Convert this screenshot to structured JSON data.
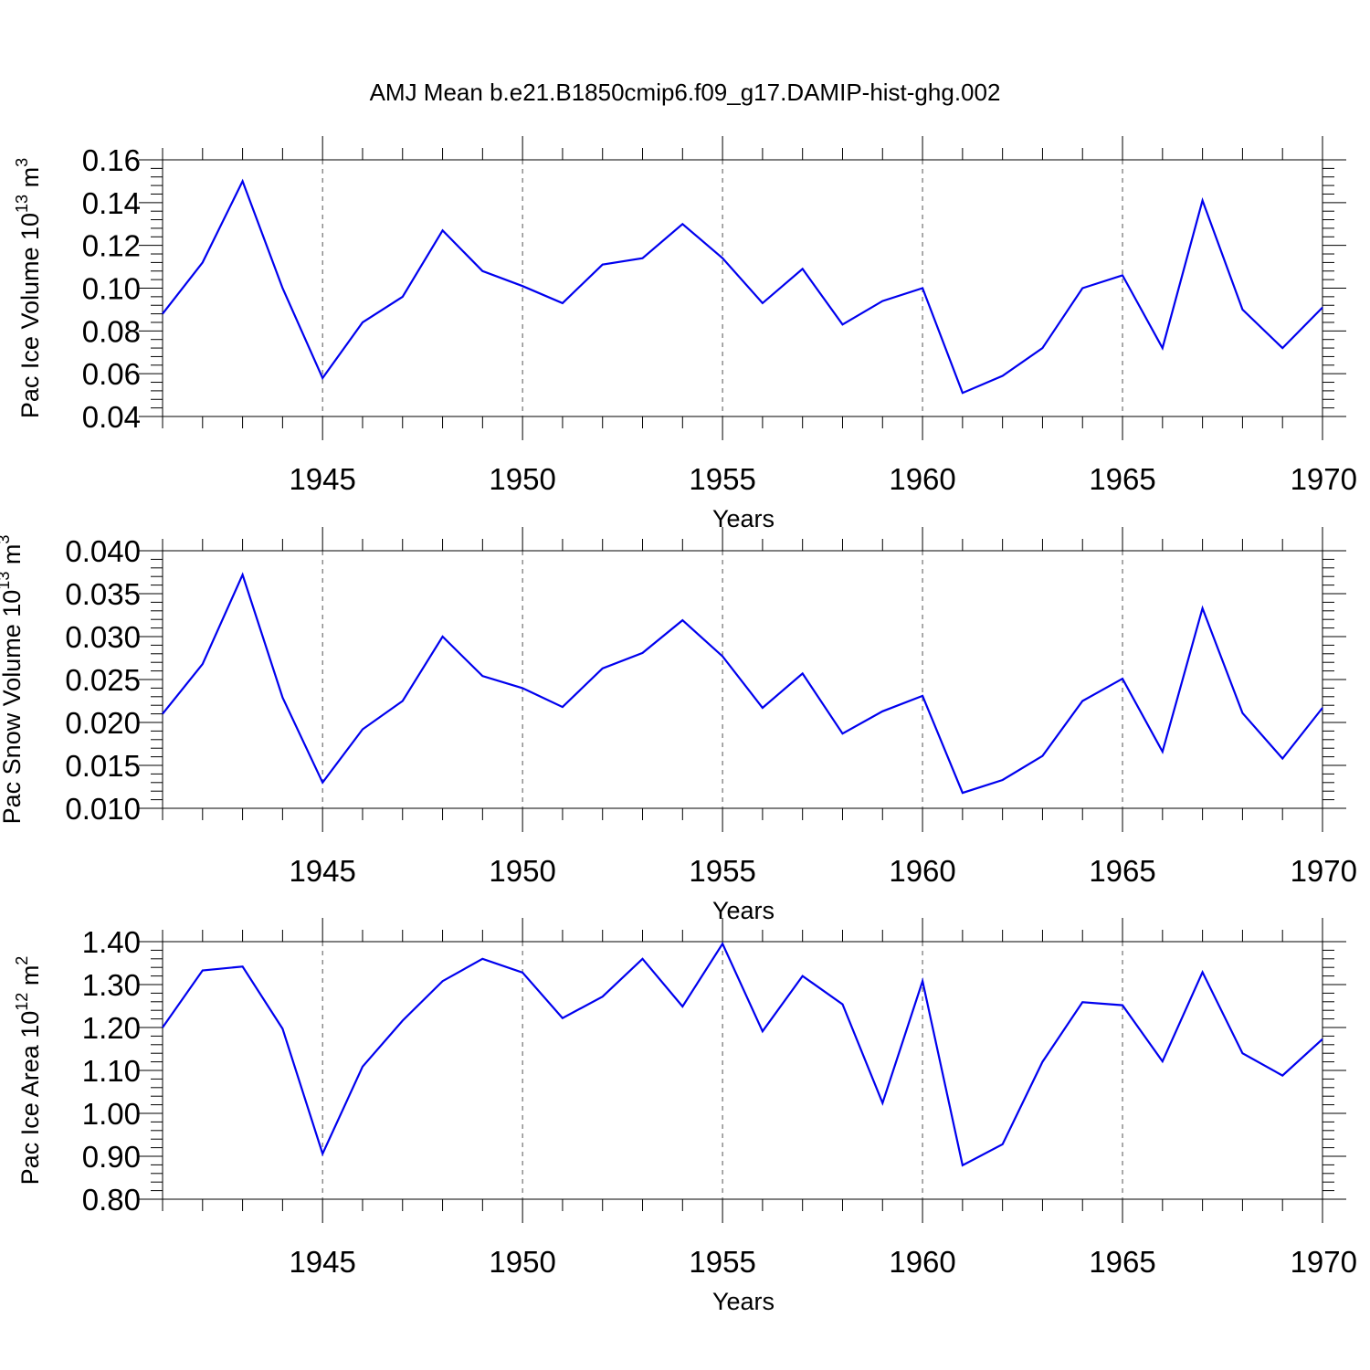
{
  "title": "AMJ Mean b.e21.B1850cmip6.f09_g17.DAMIP-hist-ghg.002",
  "colors": {
    "line": "#0000ee",
    "axis": "#000000",
    "grid": "#555555"
  },
  "chart_data": [
    {
      "type": "line",
      "ylabel": "Pac Ice Volume 10",
      "ylabel_exp": "13",
      "ylabel_unit": "m",
      "ylabel_unit_exp": "3",
      "xlabel": "Years",
      "xlim": [
        1941,
        1970
      ],
      "ylim": [
        0.04,
        0.16
      ],
      "yticks": [
        "0.04",
        "0.06",
        "0.08",
        "0.10",
        "0.12",
        "0.14",
        "0.16"
      ],
      "xticks": [
        "1945",
        "1950",
        "1955",
        "1960",
        "1965",
        "1970"
      ],
      "grid": "vertical dashed at major x ticks",
      "x": [
        1941,
        1942,
        1943,
        1944,
        1945,
        1946,
        1947,
        1948,
        1949,
        1950,
        1951,
        1952,
        1953,
        1954,
        1955,
        1956,
        1957,
        1958,
        1959,
        1960,
        1961,
        1962,
        1963,
        1964,
        1965,
        1966,
        1967,
        1968,
        1969,
        1970
      ],
      "series": [
        {
          "values": [
            0.088,
            0.112,
            0.15,
            0.1,
            0.058,
            0.084,
            0.096,
            0.127,
            0.108,
            0.101,
            0.093,
            0.111,
            0.114,
            0.13,
            0.114,
            0.093,
            0.109,
            0.083,
            0.094,
            0.1,
            0.051,
            0.059,
            0.072,
            0.1,
            0.106,
            0.072,
            0.141,
            0.09,
            0.072,
            0.091
          ]
        }
      ]
    },
    {
      "type": "line",
      "ylabel": "Pac Snow Volume 10",
      "ylabel_exp": "13",
      "ylabel_unit": "m",
      "ylabel_unit_exp": "3",
      "xlabel": "Years",
      "xlim": [
        1941,
        1970
      ],
      "ylim": [
        0.01,
        0.04
      ],
      "yticks": [
        "0.010",
        "0.015",
        "0.020",
        "0.025",
        "0.030",
        "0.035",
        "0.040"
      ],
      "xticks": [
        "1945",
        "1950",
        "1955",
        "1960",
        "1965",
        "1970"
      ],
      "grid": "vertical dashed at major x ticks",
      "x": [
        1941,
        1942,
        1943,
        1944,
        1945,
        1946,
        1947,
        1948,
        1949,
        1950,
        1951,
        1952,
        1953,
        1954,
        1955,
        1956,
        1957,
        1958,
        1959,
        1960,
        1961,
        1962,
        1963,
        1964,
        1965,
        1966,
        1967,
        1968,
        1969,
        1970
      ],
      "series": [
        {
          "values": [
            0.021,
            0.0268,
            0.0372,
            0.0229,
            0.013,
            0.0192,
            0.0225,
            0.03,
            0.0254,
            0.024,
            0.0218,
            0.0263,
            0.0281,
            0.0319,
            0.0277,
            0.0217,
            0.0257,
            0.0187,
            0.0213,
            0.0231,
            0.0118,
            0.0133,
            0.0161,
            0.0225,
            0.0251,
            0.0166,
            0.0333,
            0.0211,
            0.0158,
            0.0217
          ]
        }
      ]
    },
    {
      "type": "line",
      "ylabel": "Pac Ice Area 10",
      "ylabel_exp": "12",
      "ylabel_unit": "m",
      "ylabel_unit_exp": "2",
      "xlabel": "Years",
      "xlim": [
        1941,
        1970
      ],
      "ylim": [
        0.8,
        1.4
      ],
      "yticks": [
        "0.80",
        "0.90",
        "1.00",
        "1.10",
        "1.20",
        "1.30",
        "1.40"
      ],
      "xticks": [
        "1945",
        "1950",
        "1955",
        "1960",
        "1965",
        "1970"
      ],
      "grid": "vertical dashed at major x ticks",
      "x": [
        1941,
        1942,
        1943,
        1944,
        1945,
        1946,
        1947,
        1948,
        1949,
        1950,
        1951,
        1952,
        1953,
        1954,
        1955,
        1956,
        1957,
        1958,
        1959,
        1960,
        1961,
        1962,
        1963,
        1964,
        1965,
        1966,
        1967,
        1968,
        1969,
        1970
      ],
      "series": [
        {
          "values": [
            1.2,
            1.333,
            1.342,
            1.197,
            0.906,
            1.109,
            1.216,
            1.308,
            1.36,
            1.328,
            1.222,
            1.272,
            1.36,
            1.249,
            1.395,
            1.191,
            1.32,
            1.254,
            1.024,
            1.308,
            0.879,
            0.928,
            1.12,
            1.259,
            1.252,
            1.121,
            1.329,
            1.14,
            1.088,
            1.173
          ]
        }
      ]
    }
  ]
}
